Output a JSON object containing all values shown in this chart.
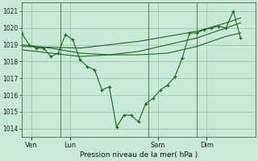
{
  "background_color": "#c8e8d8",
  "grid_color": "#a0ccb8",
  "line_color": "#1a6b1a",
  "marker_color": "#1a6b1a",
  "xlabel": "Pression niveau de la mer( hPa )",
  "ylim": [
    1013.5,
    1021.5
  ],
  "yticks": [
    1014,
    1015,
    1016,
    1017,
    1018,
    1019,
    1020,
    1021
  ],
  "xlim": [
    0,
    96
  ],
  "xtick_positions": [
    4,
    20,
    56,
    76
  ],
  "xtick_labels": [
    "Ven",
    "Lun",
    "Sam",
    "Dim"
  ],
  "vlines": [
    16,
    52,
    72
  ],
  "line1_x": [
    0,
    3,
    6,
    9,
    12,
    15,
    18,
    21,
    24,
    27,
    30,
    33,
    36,
    39,
    42,
    45,
    48,
    51,
    54,
    57,
    60,
    63,
    66,
    69,
    72,
    75,
    78,
    81,
    84,
    87,
    90
  ],
  "line1_y": [
    1019.7,
    1019.0,
    1018.8,
    1018.8,
    1018.3,
    1018.5,
    1019.6,
    1019.3,
    1018.1,
    1017.7,
    1017.5,
    1016.3,
    1016.5,
    1014.1,
    1014.8,
    1014.8,
    1014.4,
    1015.5,
    1015.8,
    1016.3,
    1016.6,
    1017.1,
    1018.2,
    1019.7,
    1019.7,
    1019.9,
    1020.0,
    1020.1,
    1020.0,
    1021.0,
    1019.4
  ],
  "line2_x": [
    0,
    12,
    24,
    36,
    48,
    60,
    72,
    84,
    90
  ],
  "line2_y": [
    1019.0,
    1018.8,
    1018.5,
    1018.4,
    1018.4,
    1018.5,
    1018.9,
    1019.5,
    1019.7
  ],
  "line3_x": [
    0,
    12,
    24,
    36,
    48,
    60,
    72,
    84,
    90
  ],
  "line3_y": [
    1018.9,
    1018.85,
    1018.8,
    1019.0,
    1019.2,
    1019.5,
    1019.8,
    1020.3,
    1020.6
  ],
  "line4_x": [
    0,
    12,
    24,
    36,
    48,
    60,
    72,
    84,
    90
  ],
  "line4_y": [
    1018.7,
    1018.5,
    1018.3,
    1018.4,
    1018.6,
    1019.0,
    1019.4,
    1020.0,
    1020.3
  ]
}
